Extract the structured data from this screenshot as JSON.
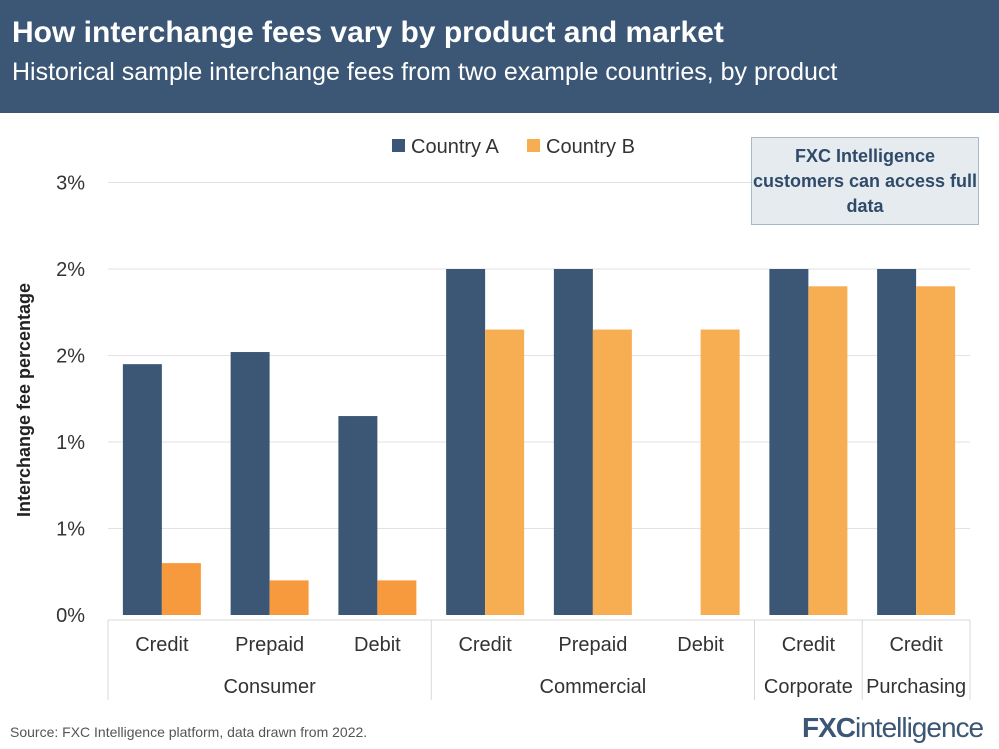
{
  "header": {
    "title": "How interchange fees vary by product and market",
    "subtitle": "Historical sample interchange fees from two example countries, by product"
  },
  "note": "FXC Intelligence customers can access full data",
  "source": "Source: FXC Intelligence platform, data drawn from 2022.",
  "logo": "FXCintelligence",
  "colors": {
    "country_a": "#3b5775",
    "country_b": "#f7ae52",
    "country_b_consumer": "#f79a3e"
  },
  "chart_data": {
    "type": "bar",
    "ylabel": "Interchange fee percentage",
    "ylim": [
      0,
      2.5
    ],
    "yticks": [
      0,
      0.5,
      1.0,
      1.5,
      2.0,
      2.5
    ],
    "ytick_labels": [
      "0%",
      "1%",
      "1%",
      "2%",
      "2%",
      "3%"
    ],
    "grid": true,
    "legend": "top-center",
    "categories": [
      "Credit",
      "Prepaid",
      "Debit",
      "Credit",
      "Prepaid",
      "Debit",
      "Credit",
      "Credit"
    ],
    "groups": [
      {
        "label": "Consumer",
        "span": 3
      },
      {
        "label": "Commercial",
        "span": 3
      },
      {
        "label": "Corporate",
        "span": 1
      },
      {
        "label": "Purchasing",
        "span": 1
      }
    ],
    "series": [
      {
        "name": "Country A",
        "values": [
          1.45,
          1.52,
          1.15,
          2.0,
          2.0,
          null,
          2.0,
          2.0
        ]
      },
      {
        "name": "Country B",
        "values": [
          0.3,
          0.2,
          0.2,
          1.65,
          1.65,
          1.65,
          1.9,
          1.9
        ]
      }
    ]
  }
}
